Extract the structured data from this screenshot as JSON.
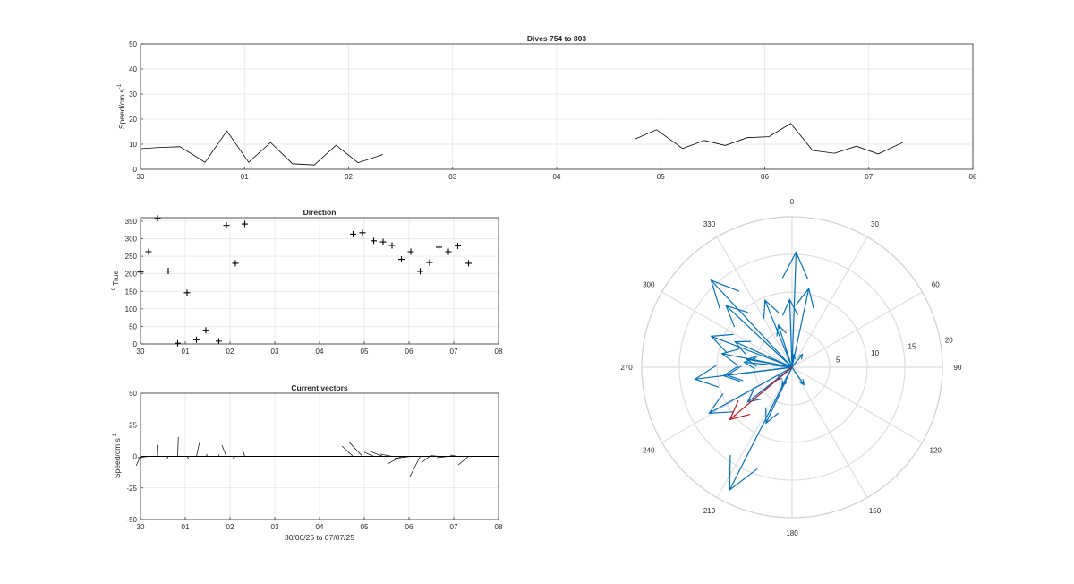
{
  "chart_data": [
    {
      "type": "line",
      "title": "Dives 754 to 803",
      "xlabel": "",
      "ylabel": "Speed/cm s",
      "ylabel_exponent": "-1",
      "xlim": [
        0,
        8
      ],
      "ylim": [
        0,
        50
      ],
      "x_ticks": [
        "30",
        "01",
        "02",
        "03",
        "04",
        "05",
        "06",
        "07",
        "08"
      ],
      "y_ticks": [
        0,
        10,
        20,
        30,
        40,
        50
      ],
      "grid": true,
      "line_color": "#000000",
      "series": [
        {
          "x": [
            0.0,
            0.18,
            0.38,
            0.62,
            0.83,
            1.04,
            1.25,
            1.46,
            1.67,
            1.88,
            2.09,
            2.33
          ],
          "values": [
            8.2,
            8.7,
            9.0,
            2.8,
            15.3,
            2.8,
            10.7,
            2.2,
            1.7,
            9.6,
            2.6,
            5.9
          ]
        },
        {
          "x": [
            4.75,
            4.96,
            5.21,
            5.42,
            5.62,
            5.83,
            6.04,
            6.25,
            6.46,
            6.67,
            6.88,
            7.09,
            7.33
          ],
          "values": [
            12.0,
            15.8,
            8.3,
            11.5,
            9.5,
            12.6,
            13.0,
            18.3,
            7.5,
            6.4,
            9.2,
            6.1,
            10.8
          ]
        }
      ]
    },
    {
      "type": "scatter",
      "title": "Direction",
      "xlabel": "",
      "ylabel": "True",
      "ylabel_prefix": "o",
      "xlim": [
        0,
        8
      ],
      "ylim": [
        0,
        360
      ],
      "x_ticks": [
        "30",
        "01",
        "02",
        "03",
        "04",
        "05",
        "06",
        "07",
        "08"
      ],
      "y_ticks": [
        0,
        50,
        100,
        150,
        200,
        250,
        300,
        350
      ],
      "grid": true,
      "marker": "+",
      "x": [
        0.0,
        0.18,
        0.38,
        0.62,
        0.83,
        1.04,
        1.25,
        1.46,
        1.75,
        1.92,
        2.12,
        2.33,
        4.75,
        4.96,
        5.21,
        5.42,
        5.62,
        5.83,
        6.04,
        6.25,
        6.46,
        6.67,
        6.88,
        7.09,
        7.33
      ],
      "values": [
        205,
        263,
        358,
        208,
        2,
        146,
        12,
        39,
        8,
        338,
        230,
        342,
        313,
        317,
        294,
        291,
        281,
        241,
        263,
        207,
        232,
        276,
        263,
        280,
        230
      ]
    },
    {
      "type": "line",
      "subtype": "stick",
      "title": "Current vectors",
      "xlabel": "30/06/25 to 07/07/25",
      "ylabel": "Speed/cm s",
      "ylabel_exponent": "-1",
      "xlim": [
        0,
        8
      ],
      "ylim": [
        -50,
        50
      ],
      "x_ticks": [
        "30",
        "01",
        "02",
        "03",
        "04",
        "05",
        "06",
        "07",
        "08"
      ],
      "y_ticks": [
        -50,
        -25,
        0,
        25,
        50
      ],
      "grid": true,
      "x": [
        0.0,
        0.18,
        0.38,
        0.62,
        0.83,
        1.04,
        1.25,
        1.46,
        1.75,
        1.92,
        2.12,
        2.33,
        4.75,
        4.96,
        5.21,
        5.42,
        5.62,
        5.83,
        6.04,
        6.25,
        6.46,
        6.67,
        6.88,
        7.09,
        7.33
      ],
      "speed": [
        8.2,
        8.7,
        9.0,
        2.8,
        15.3,
        2.8,
        10.7,
        2.2,
        1.7,
        9.6,
        2.6,
        5.9,
        12.0,
        15.8,
        8.3,
        11.5,
        9.5,
        12.6,
        13.0,
        18.3,
        7.5,
        6.4,
        9.2,
        6.1,
        10.8
      ],
      "direction": [
        205,
        263,
        358,
        208,
        2,
        146,
        12,
        39,
        8,
        338,
        230,
        342,
        313,
        317,
        294,
        291,
        281,
        241,
        263,
        207,
        232,
        276,
        263,
        280,
        230
      ]
    },
    {
      "type": "scatter",
      "subtype": "compass",
      "title": "",
      "rlim": [
        0,
        20
      ],
      "r_ticks": [
        "5",
        "10",
        "15",
        "20"
      ],
      "theta_ticks": [
        "0",
        "30",
        "60",
        "90",
        "120",
        "150",
        "180",
        "210",
        "240",
        "270",
        "300",
        "330"
      ],
      "arrow_color": "#0072BD",
      "highlight_color": "#C0121E",
      "highlight_index": 24,
      "speed": [
        8.2,
        8.7,
        9.0,
        2.8,
        15.3,
        2.8,
        10.7,
        2.2,
        1.7,
        9.6,
        2.6,
        5.9,
        12.0,
        15.8,
        8.3,
        11.5,
        9.5,
        12.6,
        13.0,
        18.3,
        7.5,
        6.4,
        9.2,
        6.1,
        10.8
      ],
      "direction": [
        205,
        263,
        358,
        208,
        2,
        146,
        12,
        39,
        8,
        338,
        230,
        342,
        313,
        317,
        294,
        291,
        281,
        241,
        263,
        207,
        232,
        276,
        263,
        280,
        230
      ]
    }
  ]
}
